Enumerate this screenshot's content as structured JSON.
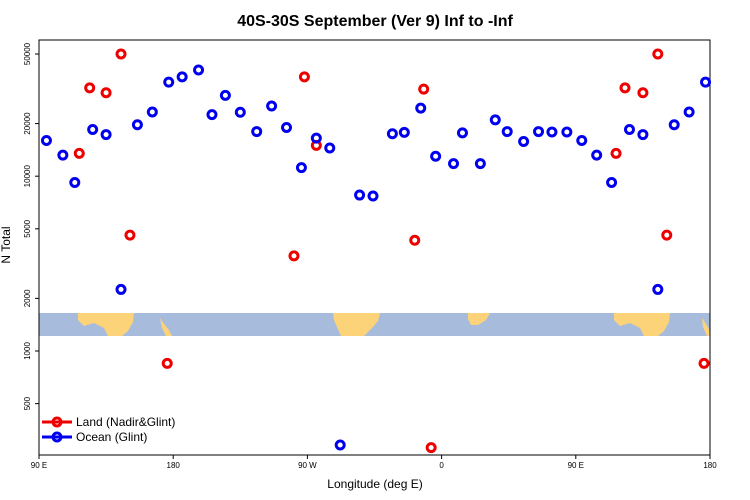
{
  "chart_data": {
    "type": "scatter",
    "title": "40S-30S September (Ver 9)   Inf to -Inf",
    "xlabel": "Longitude (deg E)",
    "ylabel": "N Total",
    "y_scale": "log",
    "x_ticks": [
      {
        "value": 90,
        "label": "90 E"
      },
      {
        "value": 180,
        "label": "180"
      },
      {
        "value": 270,
        "label": "90 W"
      },
      {
        "value": 360,
        "label": "0"
      },
      {
        "value": 450,
        "label": "90 E"
      },
      {
        "value": 540,
        "label": "180"
      }
    ],
    "y_ticks": [
      500,
      1000,
      2000,
      5000,
      10000,
      20000,
      50000
    ],
    "xlim": [
      90,
      540
    ],
    "ylim": [
      300,
      62000
    ],
    "legend": {
      "position": "bottom-left"
    },
    "series": [
      {
        "name": "Land (Nadir&Glint)",
        "color": "#ee0000",
        "points": [
          {
            "x": 117,
            "y": 13500
          },
          {
            "x": 124,
            "y": 32000
          },
          {
            "x": 135,
            "y": 30000
          },
          {
            "x": 145,
            "y": 50000
          },
          {
            "x": 151,
            "y": 4600
          },
          {
            "x": 176,
            "y": 850
          },
          {
            "x": 261,
            "y": 3500
          },
          {
            "x": 268,
            "y": 37000
          },
          {
            "x": 276,
            "y": 15000
          },
          {
            "x": 342,
            "y": 4300
          },
          {
            "x": 348,
            "y": 31500
          },
          {
            "x": 353,
            "y": 280
          },
          {
            "x": 477,
            "y": 13500
          },
          {
            "x": 483,
            "y": 32000
          },
          {
            "x": 495,
            "y": 30000
          },
          {
            "x": 505,
            "y": 50000
          },
          {
            "x": 511,
            "y": 4600
          },
          {
            "x": 536,
            "y": 850
          }
        ]
      },
      {
        "name": "Ocean (Glint)",
        "color": "#0000ee",
        "points": [
          {
            "x": 95,
            "y": 16000
          },
          {
            "x": 106,
            "y": 13200
          },
          {
            "x": 114,
            "y": 9200
          },
          {
            "x": 126,
            "y": 18500
          },
          {
            "x": 135,
            "y": 17300
          },
          {
            "x": 145,
            "y": 2250
          },
          {
            "x": 156,
            "y": 19700
          },
          {
            "x": 166,
            "y": 23300
          },
          {
            "x": 177,
            "y": 34500
          },
          {
            "x": 186,
            "y": 37000
          },
          {
            "x": 197,
            "y": 40500
          },
          {
            "x": 206,
            "y": 22500
          },
          {
            "x": 215,
            "y": 29000
          },
          {
            "x": 225,
            "y": 23200
          },
          {
            "x": 236,
            "y": 18000
          },
          {
            "x": 246,
            "y": 25200
          },
          {
            "x": 256,
            "y": 19000
          },
          {
            "x": 266,
            "y": 11200
          },
          {
            "x": 276,
            "y": 16500
          },
          {
            "x": 285,
            "y": 14500
          },
          {
            "x": 292,
            "y": 290
          },
          {
            "x": 305,
            "y": 7800
          },
          {
            "x": 314,
            "y": 7700
          },
          {
            "x": 327,
            "y": 17500
          },
          {
            "x": 335,
            "y": 17800
          },
          {
            "x": 346,
            "y": 24500
          },
          {
            "x": 356,
            "y": 13000
          },
          {
            "x": 368,
            "y": 11800
          },
          {
            "x": 374,
            "y": 17700
          },
          {
            "x": 386,
            "y": 11800
          },
          {
            "x": 396,
            "y": 21000
          },
          {
            "x": 404,
            "y": 18000
          },
          {
            "x": 415,
            "y": 15800
          },
          {
            "x": 425,
            "y": 18000
          },
          {
            "x": 434,
            "y": 17900
          },
          {
            "x": 444,
            "y": 17900
          },
          {
            "x": 454,
            "y": 16000
          },
          {
            "x": 464,
            "y": 13200
          },
          {
            "x": 474,
            "y": 9200
          },
          {
            "x": 486,
            "y": 18500
          },
          {
            "x": 495,
            "y": 17300
          },
          {
            "x": 505,
            "y": 2250
          },
          {
            "x": 516,
            "y": 19700
          },
          {
            "x": 526,
            "y": 23300
          },
          {
            "x": 537,
            "y": 34500
          }
        ]
      }
    ]
  }
}
